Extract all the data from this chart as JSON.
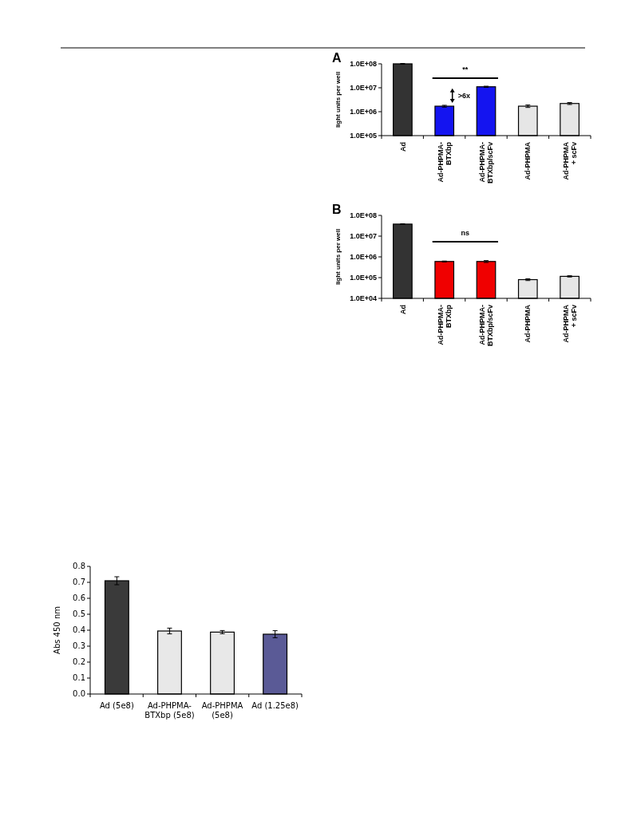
{
  "chart_data": [
    {
      "type": "bar",
      "title": "A",
      "ylabel": "light units per well",
      "log": "y",
      "categories": [
        "Ad",
        "Ad-PHPMA-\nBTXbp",
        "Ad-PHPMA-\nBTXbp/scFv",
        "Ad-PHPMA",
        "Ad-PHPMA\n+ scFv"
      ],
      "values": [
        100000000,
        1700000,
        11000000,
        1700000,
        2200000
      ],
      "errors": [
        3000000,
        150000,
        600000,
        200000,
        200000
      ],
      "colors": [
        "#333333",
        "#1414f0",
        "#1414f0",
        "#e6e6e6",
        "#e6e6e6"
      ],
      "ylim": [
        100000,
        100000000
      ],
      "yticks": [
        {
          "value": 100000,
          "label": "1.0E+05"
        },
        {
          "value": 1000000,
          "label": "1.0E+06"
        },
        {
          "value": 10000000,
          "label": "1.0E+07"
        },
        {
          "value": 100000000,
          "label": "1.0E+08"
        }
      ],
      "annotations": [
        "**",
        ">6x"
      ]
    },
    {
      "type": "bar",
      "title": "B",
      "ylabel": "light units per well",
      "log": "y",
      "categories": [
        "Ad",
        "Ad-PHPMA-\nBTXbp",
        "Ad-PHPMA-\nBTXbp/scFv",
        "Ad-PHPMA",
        "Ad-PHPMA\n+ scFv"
      ],
      "values": [
        38000000,
        600000,
        600000,
        80000,
        115000
      ],
      "errors": [
        1500000,
        30000,
        60000,
        8000,
        8000
      ],
      "colors": [
        "#333333",
        "#f00000",
        "#f00000",
        "#e6e6e6",
        "#e6e6e6"
      ],
      "ylim": [
        10000,
        100000000
      ],
      "yticks": [
        {
          "value": 10000,
          "label": "1.0E+04"
        },
        {
          "value": 100000,
          "label": "1.0E+05"
        },
        {
          "value": 1000000,
          "label": "1.0E+06"
        },
        {
          "value": 10000000,
          "label": "1.0E+07"
        },
        {
          "value": 100000000,
          "label": "1.0E+08"
        }
      ],
      "annotations": [
        "ns"
      ]
    },
    {
      "type": "bar",
      "ylabel": "Abs 450 nm",
      "categories": [
        "Ad (5e8)",
        "Ad-PHPMA-\nBTXbp (5e8)",
        "Ad-PHPMA\n(5e8)",
        "Ad (1.25e8)"
      ],
      "values": [
        0.71,
        0.395,
        0.388,
        0.375
      ],
      "errors": [
        0.025,
        0.018,
        0.01,
        0.022
      ],
      "colors": [
        "#3a3a3a",
        "#e8e8e8",
        "#e8e8e8",
        "#5a5a96"
      ],
      "ylim": [
        0,
        0.8
      ],
      "yticks": [
        "0.0",
        0.1,
        0.2,
        0.3,
        0.4,
        0.5,
        0.6,
        0.7,
        0.8
      ]
    }
  ]
}
